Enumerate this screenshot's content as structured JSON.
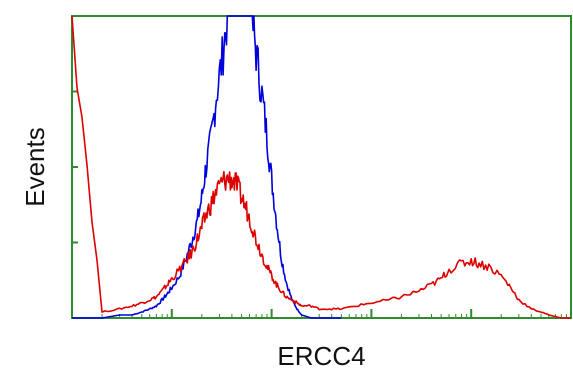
{
  "chart_data": {
    "type": "line",
    "title": "",
    "xlabel": "ERCC4",
    "ylabel": "Events",
    "x_scale": "log",
    "xlim": [
      1,
      100000
    ],
    "ylim": [
      0,
      100
    ],
    "grid": false,
    "legend": "none",
    "colors": {
      "axis": "#2e8b2e",
      "frame": "#2e8b2e"
    },
    "series": [
      {
        "color": "#0000dd",
        "x": [
          1,
          2,
          3,
          4,
          5,
          6,
          7,
          8,
          9,
          10,
          12,
          14,
          16,
          18,
          20,
          22,
          25,
          28,
          32,
          36,
          40,
          45,
          50,
          56,
          63,
          70,
          80,
          90,
          100,
          112,
          125,
          140,
          160,
          180,
          200,
          250,
          300,
          400,
          500
        ],
        "y": [
          0,
          0,
          1,
          1,
          2,
          3,
          4,
          6,
          8,
          10,
          14,
          20,
          26,
          32,
          40,
          50,
          60,
          74,
          86,
          100,
          100,
          100,
          100,
          100,
          100,
          88,
          74,
          60,
          46,
          32,
          20,
          12,
          6,
          3,
          1,
          0,
          0,
          0,
          0
        ]
      },
      {
        "color": "#dd0000",
        "x": [
          1,
          2,
          3,
          4,
          5,
          6,
          7,
          8,
          9,
          10,
          12,
          14,
          16,
          18,
          20,
          22,
          25,
          28,
          32,
          36,
          40,
          45,
          50,
          56,
          63,
          70,
          80,
          90,
          100,
          112,
          125,
          140,
          160,
          180,
          200,
          250,
          300,
          400,
          500,
          700,
          1000,
          1500,
          2000,
          3000,
          4000,
          5000,
          6000,
          8000,
          10000,
          12000,
          15000,
          20000,
          25000,
          30000,
          40000,
          50000,
          60000,
          80000,
          100000
        ],
        "y": [
          100,
          2,
          3,
          4,
          5,
          6,
          7,
          9,
          11,
          13,
          16,
          19,
          22,
          26,
          30,
          34,
          38,
          42,
          45,
          46,
          46,
          44,
          40,
          36,
          31,
          26,
          21,
          17,
          14,
          11,
          9,
          7,
          6,
          5,
          4,
          4,
          3,
          3,
          3,
          4,
          5,
          6,
          7,
          9,
          11,
          13,
          16,
          18,
          19,
          18,
          17,
          14,
          10,
          6,
          3,
          2,
          1,
          0,
          0
        ]
      }
    ]
  }
}
